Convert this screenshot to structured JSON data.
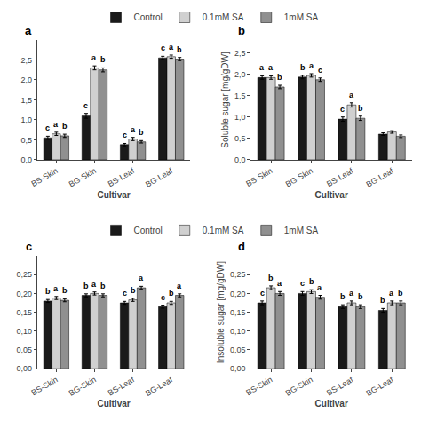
{
  "chart_data": [
    {
      "type": "bar",
      "title": "a",
      "xlabel": "Cultivar",
      "categories": [
        "BS-Skin",
        "BG-Skin",
        "BS-Leaf",
        "BG-Leaf"
      ],
      "series": [
        {
          "name": "Control",
          "color": "#1a1a1a",
          "values": [
            0.55,
            1.1,
            0.38,
            2.55
          ],
          "errors": [
            0.04,
            0.06,
            0.03,
            0.04
          ],
          "letters": [
            "c",
            "c",
            "c",
            "c"
          ]
        },
        {
          "name": "0.1mM SA",
          "color": "#d0d0d0",
          "values": [
            0.65,
            2.3,
            0.52,
            2.58
          ],
          "errors": [
            0.04,
            0.05,
            0.04,
            0.04
          ],
          "letters": [
            "a",
            "a",
            "a",
            "a"
          ]
        },
        {
          "name": "1mM SA",
          "color": "#909090",
          "values": [
            0.6,
            2.25,
            0.45,
            2.52
          ],
          "errors": [
            0.04,
            0.05,
            0.03,
            0.04
          ],
          "letters": [
            "b",
            "b",
            "b",
            "b"
          ]
        }
      ],
      "ylim": [
        0,
        3.0
      ],
      "yticks": [
        {
          "value": 0.0,
          "label": "0,0"
        },
        {
          "value": 0.5,
          "label": "0,5"
        },
        {
          "value": 1.0,
          "label": "1,0"
        },
        {
          "value": 1.5,
          "label": "1,5"
        },
        {
          "value": 2.0,
          "label": "2,0"
        },
        {
          "value": 2.5,
          "label": "2,5"
        }
      ],
      "grid": false,
      "legend": "top"
    },
    {
      "type": "bar",
      "title": "b",
      "xlabel": "Cultivar",
      "ylabel": "Soluble sugar [mg/gDW]",
      "categories": [
        "BS-Skin",
        "BG-Skin",
        "BS-Leaf",
        "BG-Leaf"
      ],
      "series": [
        {
          "name": "Control",
          "color": "#1a1a1a",
          "values": [
            1.92,
            1.93,
            0.95,
            0.6
          ],
          "errors": [
            0.04,
            0.04,
            0.05,
            0.03
          ],
          "letters": [
            "a",
            "b",
            "c",
            null
          ]
        },
        {
          "name": "0.1mM SA",
          "color": "#d0d0d0",
          "values": [
            1.92,
            1.97,
            1.28,
            0.65
          ],
          "errors": [
            0.04,
            0.04,
            0.05,
            0.03
          ],
          "letters": [
            "a",
            "a",
            "a",
            null
          ]
        },
        {
          "name": "1mM SA",
          "color": "#909090",
          "values": [
            1.7,
            1.87,
            0.97,
            0.55
          ],
          "errors": [
            0.04,
            0.04,
            0.05,
            0.03
          ],
          "letters": [
            "b",
            "c",
            "b",
            null
          ]
        }
      ],
      "ylim": [
        0,
        2.8
      ],
      "yticks": [
        {
          "value": 0.0,
          "label": "0,0"
        },
        {
          "value": 0.5,
          "label": "0,5"
        },
        {
          "value": 1.0,
          "label": "1,0"
        },
        {
          "value": 1.5,
          "label": "1,5"
        },
        {
          "value": 2.0,
          "label": "2,0"
        },
        {
          "value": 2.5,
          "label": "2,5"
        }
      ],
      "grid": false
    },
    {
      "type": "bar",
      "title": "c",
      "xlabel": "Cultivar",
      "categories": [
        "BS-Skin",
        "BG-Skin",
        "BS-Leaf",
        "BG-Leaf"
      ],
      "series": [
        {
          "name": "Control",
          "color": "#1a1a1a",
          "values": [
            0.18,
            0.195,
            0.175,
            0.165
          ],
          "errors": [
            0.004,
            0.004,
            0.004,
            0.004
          ],
          "letters": [
            "b",
            "b",
            "c",
            "c"
          ]
        },
        {
          "name": "0.1mM SA",
          "color": "#d0d0d0",
          "values": [
            0.188,
            0.2,
            0.183,
            0.175
          ],
          "errors": [
            0.004,
            0.004,
            0.004,
            0.004
          ],
          "letters": [
            "a",
            "a",
            "b",
            "b"
          ]
        },
        {
          "name": "1mM SA",
          "color": "#909090",
          "values": [
            0.182,
            0.195,
            0.215,
            0.195
          ],
          "errors": [
            0.004,
            0.004,
            0.004,
            0.004
          ],
          "letters": [
            "b",
            "b",
            "a",
            "a"
          ]
        }
      ],
      "ylim": [
        0,
        0.3
      ],
      "yticks": [
        {
          "value": 0.0,
          "label": "0,00"
        },
        {
          "value": 0.05,
          "label": "0,05"
        },
        {
          "value": 0.1,
          "label": "0,10"
        },
        {
          "value": 0.15,
          "label": "0,15"
        },
        {
          "value": 0.2,
          "label": "0,20"
        },
        {
          "value": 0.25,
          "label": "0,25"
        }
      ],
      "grid": false,
      "legend": "top"
    },
    {
      "type": "bar",
      "title": "d",
      "xlabel": "Cultivar",
      "ylabel": "Insoluble sugar [mg/gDW]",
      "categories": [
        "BS-Skin",
        "BG-Skin",
        "BS-Leaf",
        "BG-Leaf"
      ],
      "series": [
        {
          "name": "Control",
          "color": "#1a1a1a",
          "values": [
            0.175,
            0.2,
            0.165,
            0.155
          ],
          "errors": [
            0.005,
            0.005,
            0.005,
            0.005
          ],
          "letters": [
            "c",
            "c",
            "b",
            "b"
          ]
        },
        {
          "name": "0.1mM SA",
          "color": "#d0d0d0",
          "values": [
            0.215,
            0.205,
            0.175,
            0.175
          ],
          "errors": [
            0.005,
            0.005,
            0.005,
            0.005
          ],
          "letters": [
            "b",
            "b",
            "a",
            "a"
          ]
        },
        {
          "name": "1mM SA",
          "color": "#909090",
          "values": [
            0.2,
            0.19,
            0.165,
            0.175
          ],
          "errors": [
            0.005,
            0.005,
            0.005,
            0.005
          ],
          "letters": [
            "a",
            "a",
            "b",
            "b"
          ]
        }
      ],
      "ylim": [
        0,
        0.3
      ],
      "yticks": [
        {
          "value": 0.0,
          "label": "0,00"
        },
        {
          "value": 0.05,
          "label": "0,05"
        },
        {
          "value": 0.1,
          "label": "0,10"
        },
        {
          "value": 0.15,
          "label": "0,15"
        },
        {
          "value": 0.2,
          "label": "0,20"
        },
        {
          "value": 0.25,
          "label": "0,25"
        }
      ],
      "grid": false
    }
  ]
}
